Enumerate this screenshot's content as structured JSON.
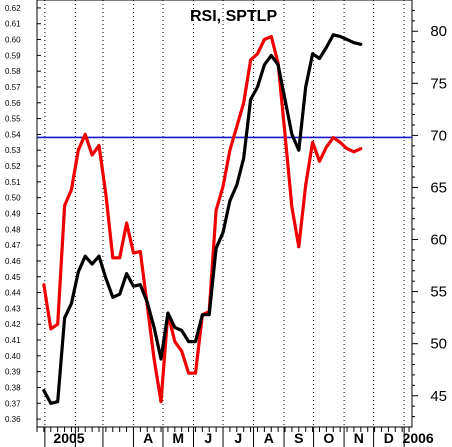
{
  "chart_data": {
    "type": "line",
    "title": "RSI, SPTLP",
    "x_ticks": [
      "2005",
      "A",
      "M",
      "J",
      "J",
      "A",
      "S",
      "O",
      "N",
      "D",
      "2006"
    ],
    "left_axis": {
      "ylim": [
        0.355,
        0.625
      ],
      "ticks": [
        "0.36",
        "0.37",
        "0.38",
        "0.39",
        "0.40",
        "0.41",
        "0.42",
        "0.43",
        "0.44",
        "0.45",
        "0.46",
        "0.47",
        "0.48",
        "0.49",
        "0.50",
        "0.51",
        "0.52",
        "0.53",
        "0.54",
        "0.55",
        "0.56",
        "0.57",
        "0.58",
        "0.59",
        "0.60",
        "0.61",
        "0.62"
      ]
    },
    "right_axis": {
      "ylim": [
        42,
        83
      ],
      "ticks": [
        "45",
        "50",
        "55",
        "60",
        "65",
        "70",
        "75",
        "80"
      ],
      "reference_line": 69.8
    },
    "series": [
      {
        "axis": "left",
        "color": "#000000",
        "x": [
          "2004-12-31",
          "2005-01-07",
          "2005-01-14",
          "2005-01-21",
          "2005-01-28",
          "2005-02-04",
          "2005-02-11",
          "2005-02-18",
          "2005-02-25",
          "2005-03-04",
          "2005-03-11",
          "2005-03-18",
          "2005-03-25",
          "2005-04-01",
          "2005-04-08",
          "2005-04-15",
          "2005-04-22",
          "2005-04-29",
          "2005-05-06",
          "2005-05-13",
          "2005-05-20",
          "2005-05-27",
          "2005-06-03",
          "2005-06-10",
          "2005-06-17",
          "2005-06-24",
          "2005-07-01",
          "2005-07-08",
          "2005-07-15",
          "2005-07-22",
          "2005-07-29",
          "2005-08-05",
          "2005-08-12",
          "2005-08-19",
          "2005-08-26",
          "2005-09-02",
          "2005-09-09",
          "2005-09-16",
          "2005-09-23",
          "2005-09-30",
          "2005-10-07",
          "2005-10-14",
          "2005-10-21",
          "2005-10-28",
          "2005-11-04",
          "2005-11-11",
          "2005-11-18"
        ],
        "values": [
          0.378,
          0.37,
          0.371,
          0.424,
          0.433,
          0.453,
          0.463,
          0.458,
          0.463,
          0.449,
          0.437,
          0.439,
          0.452,
          0.444,
          0.445,
          0.434,
          0.418,
          0.398,
          0.427,
          0.418,
          0.416,
          0.409,
          0.409,
          0.426,
          0.426,
          0.468,
          0.478,
          0.498,
          0.508,
          0.525,
          0.562,
          0.57,
          0.584,
          0.59,
          0.584,
          0.562,
          0.54,
          0.53,
          0.57,
          0.591,
          0.588,
          0.595,
          0.603,
          0.602,
          0.6,
          0.598,
          0.597
        ]
      },
      {
        "axis": "left",
        "color": "#ee0000",
        "x": [
          "2004-12-31",
          "2005-01-07",
          "2005-01-14",
          "2005-01-21",
          "2005-01-28",
          "2005-02-04",
          "2005-02-11",
          "2005-02-18",
          "2005-02-25",
          "2005-03-04",
          "2005-03-11",
          "2005-03-18",
          "2005-03-25",
          "2005-04-01",
          "2005-04-08",
          "2005-04-15",
          "2005-04-22",
          "2005-04-29",
          "2005-05-06",
          "2005-05-13",
          "2005-05-20",
          "2005-05-27",
          "2005-06-03",
          "2005-06-10",
          "2005-06-17",
          "2005-06-24",
          "2005-07-01",
          "2005-07-08",
          "2005-07-15",
          "2005-07-22",
          "2005-07-29",
          "2005-08-05",
          "2005-08-12",
          "2005-08-19",
          "2005-08-26",
          "2005-09-02",
          "2005-09-09",
          "2005-09-16",
          "2005-09-23",
          "2005-09-30",
          "2005-10-07",
          "2005-10-14",
          "2005-10-21",
          "2005-10-28",
          "2005-11-04",
          "2005-11-11",
          "2005-11-18"
        ],
        "values": [
          0.445,
          0.417,
          0.42,
          0.495,
          0.505,
          0.53,
          0.54,
          0.527,
          0.533,
          0.502,
          0.462,
          0.462,
          0.484,
          0.465,
          0.466,
          0.432,
          0.398,
          0.371,
          0.427,
          0.409,
          0.403,
          0.389,
          0.389,
          0.426,
          0.428,
          0.492,
          0.507,
          0.53,
          0.545,
          0.56,
          0.587,
          0.591,
          0.6,
          0.602,
          0.585,
          0.54,
          0.494,
          0.469,
          0.508,
          0.535,
          0.523,
          0.532,
          0.538,
          0.535,
          0.531,
          0.529,
          0.531
        ]
      }
    ]
  }
}
